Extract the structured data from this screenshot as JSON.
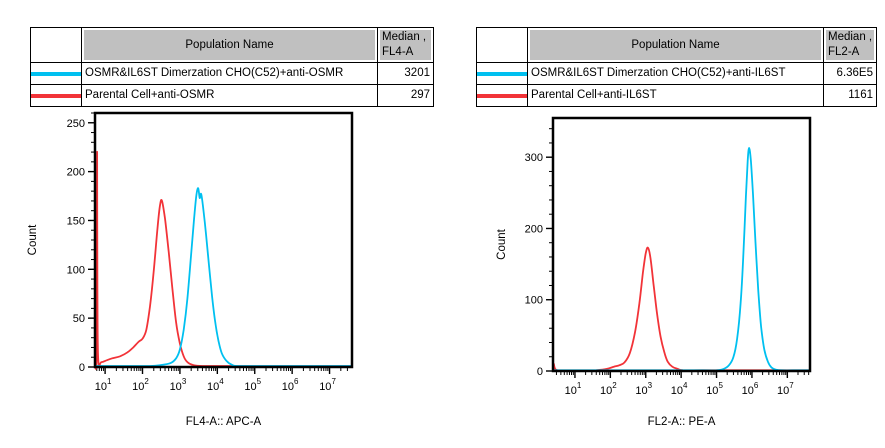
{
  "colors": {
    "cyan": "#00C0F0",
    "red": "#F23338",
    "table_header_bg": "#C0C0C0",
    "axis": "#000000"
  },
  "panels": [
    {
      "table": {
        "header": {
          "population": "Population Name",
          "median_line1": "Median ,",
          "median_line2": "FL4-A"
        },
        "rows": [
          {
            "swatch": "cyan",
            "population": "OSMR&IL6ST Dimerzation CHO(C52)+anti-OSMR",
            "median": "3201"
          },
          {
            "swatch": "red",
            "population": "Parental Cell+anti-OSMR",
            "median": "297"
          }
        ]
      }
    },
    {
      "table": {
        "header": {
          "population": "Population Name",
          "median_line1": "Median ,",
          "median_line2": "FL2-A"
        },
        "rows": [
          {
            "swatch": "cyan",
            "population": "OSMR&IL6ST Dimerzation CHO(C52)+anti-IL6ST",
            "median": "6.36E5"
          },
          {
            "swatch": "red",
            "population": "Parental Cell+anti-IL6ST",
            "median": "1161"
          }
        ]
      }
    }
  ],
  "chart_data": [
    {
      "type": "line",
      "subtype": "flow-cytometry-histogram-overlay",
      "title": "",
      "xlabel": "FL4-A:: APC-A",
      "ylabel": "Count",
      "x_scale": "log10",
      "xlim_log10": [
        0.73,
        7.6
      ],
      "ylim": [
        0,
        260
      ],
      "x_major_tick_exponents": [
        1,
        2,
        3,
        4,
        5,
        6,
        7
      ],
      "y_major_ticks": [
        0,
        50,
        100,
        150,
        200,
        250
      ],
      "y_minor_step": 10,
      "grid": false,
      "legend": "none (series colors keyed to table swatches)",
      "series": [
        {
          "name": "Parental Cell+anti-OSMR",
          "color_key": "red",
          "median": 297,
          "peak_count": 170,
          "points_log10x_count": [
            [
              0.73,
              1
            ],
            [
              0.765,
              1
            ],
            [
              0.775,
              40
            ],
            [
              0.785,
              220
            ],
            [
              0.795,
              80
            ],
            [
              0.815,
              8
            ],
            [
              0.9,
              5
            ],
            [
              1.05,
              7
            ],
            [
              1.2,
              9
            ],
            [
              1.4,
              11
            ],
            [
              1.6,
              15
            ],
            [
              1.75,
              20
            ],
            [
              1.9,
              26
            ],
            [
              2.0,
              29
            ],
            [
              2.1,
              38
            ],
            [
              2.2,
              62
            ],
            [
              2.3,
              98
            ],
            [
              2.4,
              142
            ],
            [
              2.47,
              166
            ],
            [
              2.52,
              170
            ],
            [
              2.6,
              152
            ],
            [
              2.7,
              118
            ],
            [
              2.8,
              80
            ],
            [
              2.9,
              45
            ],
            [
              3.0,
              24
            ],
            [
              3.1,
              11
            ],
            [
              3.2,
              5
            ],
            [
              3.35,
              2
            ],
            [
              3.6,
              1
            ],
            [
              4.5,
              1
            ],
            [
              5.5,
              1
            ],
            [
              6.5,
              1
            ],
            [
              7.6,
              1
            ]
          ]
        },
        {
          "name": "OSMR&IL6ST Dimerzation CHO(C52)+anti-OSMR",
          "color_key": "cyan",
          "median": 3201,
          "peak_count": 183,
          "points_log10x_count": [
            [
              0.73,
              1
            ],
            [
              1.5,
              1
            ],
            [
              2.2,
              1
            ],
            [
              2.5,
              2
            ],
            [
              2.75,
              4
            ],
            [
              2.9,
              9
            ],
            [
              3.0,
              18
            ],
            [
              3.1,
              38
            ],
            [
              3.2,
              70
            ],
            [
              3.3,
              115
            ],
            [
              3.38,
              152
            ],
            [
              3.44,
              176
            ],
            [
              3.49,
              183
            ],
            [
              3.53,
              173
            ],
            [
              3.57,
              177
            ],
            [
              3.63,
              160
            ],
            [
              3.7,
              135
            ],
            [
              3.78,
              103
            ],
            [
              3.86,
              72
            ],
            [
              3.94,
              47
            ],
            [
              4.03,
              27
            ],
            [
              4.12,
              14
            ],
            [
              4.25,
              6
            ],
            [
              4.4,
              2
            ],
            [
              4.6,
              1
            ],
            [
              5.6,
              1
            ],
            [
              6.6,
              1
            ],
            [
              7.6,
              1
            ]
          ]
        }
      ]
    },
    {
      "type": "line",
      "subtype": "flow-cytometry-histogram-overlay",
      "title": "",
      "xlabel": "FL2-A:: PE-A",
      "ylabel": "Count",
      "x_scale": "log10",
      "xlim_log10": [
        0.38,
        7.64
      ],
      "ylim": [
        0,
        355
      ],
      "x_major_tick_exponents": [
        1,
        2,
        3,
        4,
        5,
        6,
        7
      ],
      "y_major_ticks": [
        0,
        100,
        200,
        300
      ],
      "y_minor_step": 20,
      "grid": false,
      "legend": "none (series colors keyed to table swatches)",
      "series": [
        {
          "name": "Parental Cell+anti-IL6ST",
          "color_key": "red",
          "median": 1161,
          "peak_count": 173,
          "points_log10x_count": [
            [
              0.38,
              0
            ],
            [
              0.4,
              10
            ],
            [
              0.43,
              4
            ],
            [
              0.5,
              1
            ],
            [
              0.8,
              0
            ],
            [
              1.2,
              0
            ],
            [
              1.6,
              1
            ],
            [
              1.9,
              3
            ],
            [
              2.1,
              6
            ],
            [
              2.25,
              8
            ],
            [
              2.4,
              12
            ],
            [
              2.55,
              25
            ],
            [
              2.7,
              55
            ],
            [
              2.82,
              95
            ],
            [
              2.92,
              138
            ],
            [
              3.0,
              165
            ],
            [
              3.06,
              173
            ],
            [
              3.13,
              160
            ],
            [
              3.22,
              122
            ],
            [
              3.32,
              80
            ],
            [
              3.42,
              48
            ],
            [
              3.52,
              27
            ],
            [
              3.62,
              13
            ],
            [
              3.75,
              6
            ],
            [
              3.9,
              3
            ],
            [
              4.05,
              1
            ],
            [
              4.6,
              1
            ],
            [
              5.6,
              1
            ],
            [
              6.6,
              1
            ],
            [
              7.64,
              1
            ]
          ]
        },
        {
          "name": "OSMR&IL6ST Dimerzation CHO(C52)+anti-IL6ST",
          "color_key": "cyan",
          "median": 636000,
          "median_label": "6.36E5",
          "peak_count": 313,
          "points_log10x_count": [
            [
              0.38,
              1
            ],
            [
              1.5,
              1
            ],
            [
              3.0,
              1
            ],
            [
              4.6,
              1
            ],
            [
              5.0,
              1
            ],
            [
              5.2,
              3
            ],
            [
              5.35,
              8
            ],
            [
              5.48,
              20
            ],
            [
              5.58,
              45
            ],
            [
              5.68,
              95
            ],
            [
              5.76,
              165
            ],
            [
              5.83,
              245
            ],
            [
              5.88,
              295
            ],
            [
              5.92,
              313
            ],
            [
              5.97,
              295
            ],
            [
              6.03,
              248
            ],
            [
              6.1,
              180
            ],
            [
              6.18,
              112
            ],
            [
              6.26,
              62
            ],
            [
              6.35,
              30
            ],
            [
              6.45,
              13
            ],
            [
              6.55,
              5
            ],
            [
              6.67,
              2
            ],
            [
              6.85,
              1
            ],
            [
              7.3,
              1
            ],
            [
              7.64,
              1
            ]
          ]
        }
      ]
    }
  ]
}
